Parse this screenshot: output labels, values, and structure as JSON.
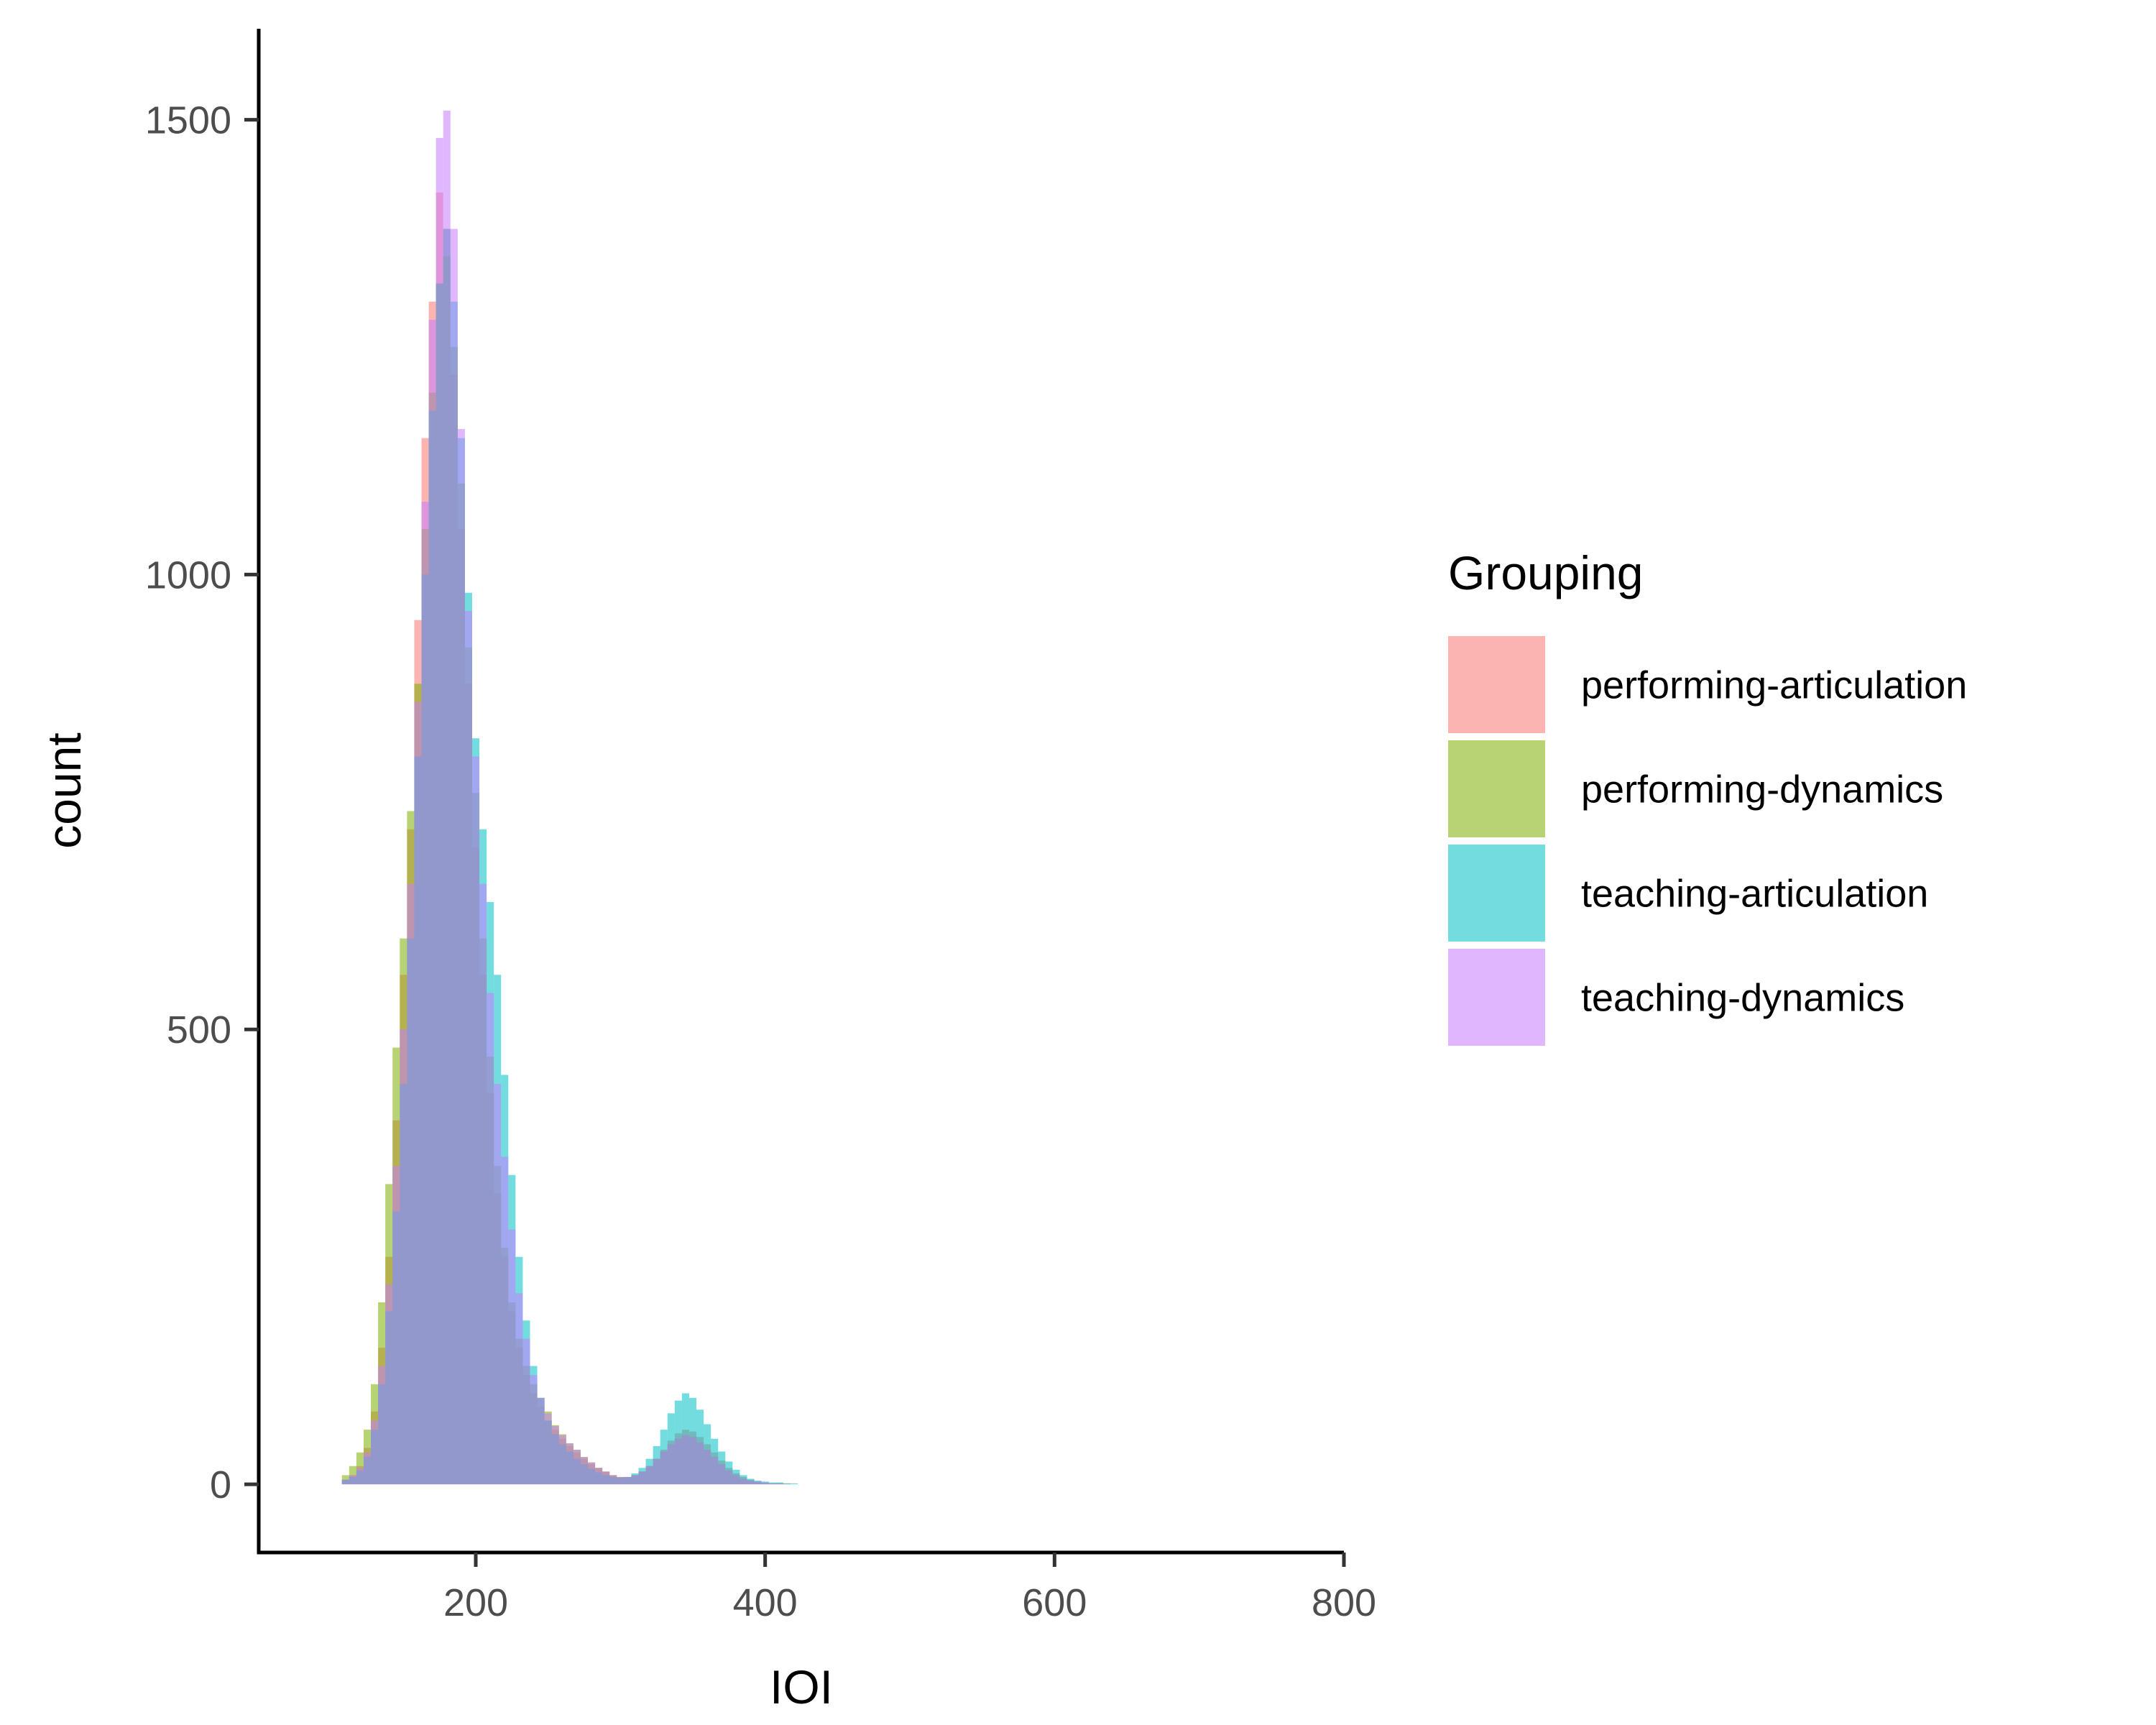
{
  "chart_data": {
    "type": "histogram",
    "xlabel": "IOI",
    "ylabel": "count",
    "xlim": [
      50,
      800
    ],
    "ylim": [
      -75,
      1600
    ],
    "x_ticks": [
      200,
      400,
      600,
      800
    ],
    "y_ticks": [
      0,
      500,
      1000,
      1500
    ],
    "x_tick_labels": [
      "200",
      "400",
      "600",
      "800"
    ],
    "y_tick_labels": [
      "0",
      "500",
      "1000",
      "1500"
    ],
    "bin_width": 5,
    "grid": false,
    "legend": {
      "title": "Grouping",
      "position": "right"
    },
    "series": [
      {
        "name": "performing-articulation",
        "color": "#F8766D",
        "x": [
          110,
          115,
          120,
          125,
          130,
          135,
          140,
          145,
          150,
          155,
          160,
          165,
          170,
          175,
          180,
          185,
          190,
          195,
          200,
          205,
          210,
          215,
          220,
          225,
          230,
          235,
          240,
          245,
          250,
          255,
          260,
          265,
          270,
          275,
          280,
          285,
          290,
          295,
          300,
          305,
          310,
          315,
          320,
          325,
          330,
          335,
          340,
          345,
          350,
          355,
          360,
          365,
          370,
          375,
          380,
          385,
          390,
          395,
          400,
          405,
          410,
          415,
          420,
          425,
          430,
          435,
          440,
          445,
          450
        ],
        "values": [
          5,
          10,
          20,
          40,
          80,
          150,
          250,
          400,
          560,
          720,
          950,
          1150,
          1300,
          1420,
          1380,
          1220,
          1050,
          880,
          700,
          560,
          430,
          320,
          250,
          190,
          150,
          120,
          100,
          85,
          70,
          60,
          50,
          42,
          35,
          28,
          22,
          18,
          14,
          10,
          8,
          8,
          10,
          14,
          20,
          28,
          38,
          48,
          56,
          60,
          58,
          52,
          44,
          35,
          26,
          18,
          12,
          8,
          5,
          3,
          2,
          1,
          1,
          1,
          0,
          0,
          0,
          0,
          0,
          0,
          0
        ]
      },
      {
        "name": "performing-dynamics",
        "color": "#7CAE00",
        "x": [
          110,
          115,
          120,
          125,
          130,
          135,
          140,
          145,
          150,
          155,
          160,
          165,
          170,
          175,
          180,
          185,
          190,
          195,
          200,
          205,
          210,
          215,
          220,
          225,
          230,
          235,
          240,
          245,
          250,
          255,
          260,
          265,
          270,
          275,
          280,
          285,
          290,
          295,
          300,
          305,
          310,
          315,
          320,
          325,
          330,
          335,
          340,
          345,
          350,
          355,
          360,
          365,
          370,
          375,
          380,
          385,
          390,
          395,
          400,
          405,
          410,
          415,
          420,
          425,
          430,
          435,
          440,
          445,
          450
        ],
        "values": [
          10,
          20,
          35,
          60,
          110,
          200,
          330,
          480,
          600,
          740,
          880,
          1050,
          1200,
          1320,
          1350,
          1250,
          1100,
          920,
          760,
          600,
          470,
          350,
          260,
          200,
          160,
          130,
          110,
          95,
          80,
          65,
          55,
          45,
          38,
          30,
          24,
          18,
          14,
          10,
          8,
          8,
          10,
          14,
          20,
          28,
          36,
          44,
          50,
          54,
          52,
          46,
          38,
          30,
          22,
          15,
          10,
          6,
          4,
          2,
          1,
          1,
          1,
          0,
          0,
          0,
          0,
          0,
          0,
          0,
          0
        ]
      },
      {
        "name": "teaching-articulation",
        "color": "#00BFC4",
        "x": [
          110,
          115,
          120,
          125,
          130,
          135,
          140,
          145,
          150,
          155,
          160,
          165,
          170,
          175,
          180,
          185,
          190,
          195,
          200,
          205,
          210,
          215,
          220,
          225,
          230,
          235,
          240,
          245,
          250,
          255,
          260,
          265,
          270,
          275,
          280,
          285,
          290,
          295,
          300,
          305,
          310,
          315,
          320,
          325,
          330,
          335,
          340,
          345,
          350,
          355,
          360,
          365,
          370,
          375,
          380,
          385,
          390,
          395,
          400,
          405,
          410,
          415,
          420,
          425,
          430,
          435,
          440,
          445,
          450
        ],
        "values": [
          5,
          8,
          15,
          30,
          60,
          110,
          190,
          300,
          440,
          600,
          800,
          1000,
          1180,
          1320,
          1380,
          1300,
          1150,
          980,
          820,
          720,
          640,
          560,
          450,
          340,
          250,
          180,
          130,
          95,
          70,
          55,
          44,
          36,
          28,
          22,
          17,
          13,
          10,
          8,
          7,
          8,
          12,
          18,
          28,
          42,
          60,
          78,
          92,
          100,
          95,
          82,
          66,
          50,
          36,
          25,
          16,
          10,
          6,
          4,
          3,
          2,
          2,
          1,
          1,
          0,
          0,
          0,
          0,
          0,
          0
        ]
      },
      {
        "name": "teaching-dynamics",
        "color": "#C77CFF",
        "x": [
          110,
          115,
          120,
          125,
          130,
          135,
          140,
          145,
          150,
          155,
          160,
          165,
          170,
          175,
          180,
          185,
          190,
          195,
          200,
          205,
          210,
          215,
          220,
          225,
          230,
          235,
          240,
          245,
          250,
          255,
          260,
          265,
          270,
          275,
          280,
          285,
          290,
          295,
          300,
          305,
          310,
          315,
          320,
          325,
          330,
          335,
          340,
          345,
          350,
          355,
          360,
          365,
          370,
          375,
          380,
          385,
          390,
          395,
          400,
          405,
          410,
          415,
          420,
          425,
          430,
          435,
          440,
          445,
          450
        ],
        "values": [
          5,
          10,
          18,
          35,
          70,
          130,
          220,
          350,
          500,
          660,
          860,
          1080,
          1280,
          1480,
          1510,
          1380,
          1160,
          960,
          800,
          660,
          540,
          440,
          360,
          280,
          210,
          160,
          120,
          95,
          78,
          64,
          54,
          45,
          38,
          30,
          24,
          18,
          14,
          10,
          8,
          8,
          10,
          14,
          20,
          28,
          36,
          44,
          50,
          54,
          52,
          46,
          38,
          30,
          22,
          15,
          10,
          6,
          4,
          3,
          2,
          1,
          1,
          0,
          0,
          0,
          0,
          0,
          0,
          0,
          0
        ]
      }
    ]
  }
}
